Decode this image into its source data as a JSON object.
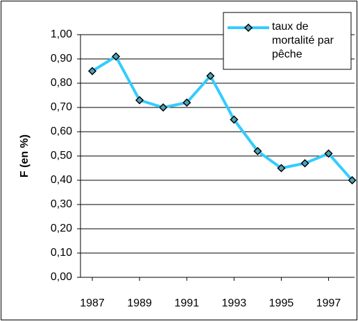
{
  "chart_data": {
    "type": "line",
    "x": [
      1987,
      1988,
      1989,
      1990,
      1991,
      1992,
      1993,
      1994,
      1995,
      1996,
      1997,
      1998
    ],
    "series": [
      {
        "name": "taux de mortalité par pêche",
        "color": "#33ccff",
        "values": [
          0.85,
          0.91,
          0.73,
          0.7,
          0.72,
          0.83,
          0.65,
          0.52,
          0.45,
          0.47,
          0.51,
          0.4
        ]
      }
    ],
    "xlim": [
      1986.5,
      1998.1
    ],
    "xticks": [
      1987,
      1989,
      1991,
      1993,
      1995,
      1997
    ],
    "ylim": [
      0,
      1
    ],
    "yticks": [
      {
        "value": 0,
        "label": "0,00"
      },
      {
        "value": 0.1,
        "label": "0,10"
      },
      {
        "value": 0.2,
        "label": "0,20"
      },
      {
        "value": 0.3,
        "label": "0,30"
      },
      {
        "value": 0.4,
        "label": "0,40"
      },
      {
        "value": 0.5,
        "label": "0,50"
      },
      {
        "value": 0.6,
        "label": "0,60"
      },
      {
        "value": 0.7,
        "label": "0,70"
      },
      {
        "value": 0.8,
        "label": "0,80"
      },
      {
        "value": 0.9,
        "label": "0,90"
      },
      {
        "value": 1,
        "label": "1,00"
      }
    ],
    "y_label": "F (en %)",
    "grid": true,
    "legend": "upper right"
  }
}
